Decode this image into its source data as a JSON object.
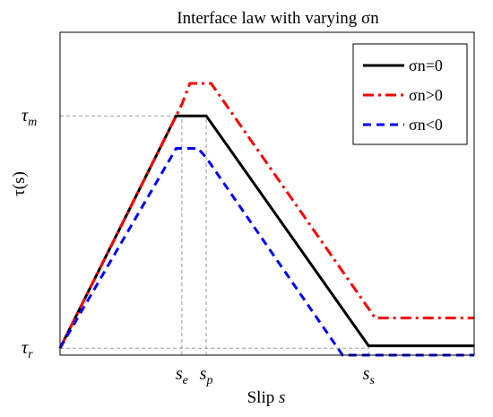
{
  "chart_data": {
    "type": "line",
    "title": "Interface law with varying σn",
    "xlabel": "Slip",
    "xlabel_var": "s",
    "ylabel": "τ(s)",
    "x_ticks": [
      {
        "base": "s",
        "sub": "e",
        "value": 1.0
      },
      {
        "base": "s",
        "sub": "p",
        "value": 1.3
      },
      {
        "base": "s",
        "sub": "s",
        "value": 3.3
      }
    ],
    "y_ticks": [
      {
        "base": "τ",
        "sub": "m",
        "value": 1.0
      },
      {
        "base": "τ",
        "sub": "r",
        "value": 0.0
      }
    ],
    "xlim": [
      -0.5,
      4.6
    ],
    "ylim": [
      -0.03,
      1.36
    ],
    "grid": false,
    "legend_position": "top-right",
    "guide_color": "#999999",
    "series": [
      {
        "name": "σn=0",
        "color": "#000000",
        "dash": "solid",
        "points": [
          [
            -0.5,
            0
          ],
          [
            0.93,
            1.0
          ],
          [
            1.3,
            1.0
          ],
          [
            3.3,
            0.01
          ],
          [
            4.6,
            0.01
          ]
        ]
      },
      {
        "name": "σn>0",
        "color": "#ff0000",
        "dash": "dashdot",
        "points": [
          [
            -0.5,
            0
          ],
          [
            1.0,
            1.05
          ],
          [
            1.1,
            1.14
          ],
          [
            1.36,
            1.14
          ],
          [
            3.38,
            0.13
          ],
          [
            4.6,
            0.13
          ]
        ]
      },
      {
        "name": "σn<0",
        "color": "#0000ff",
        "dash": "dashed",
        "points": [
          [
            -0.5,
            0
          ],
          [
            0.93,
            0.86
          ],
          [
            1.2,
            0.86
          ],
          [
            1.3,
            0.82
          ],
          [
            2.98,
            -0.03
          ],
          [
            4.6,
            -0.03
          ]
        ]
      }
    ]
  }
}
